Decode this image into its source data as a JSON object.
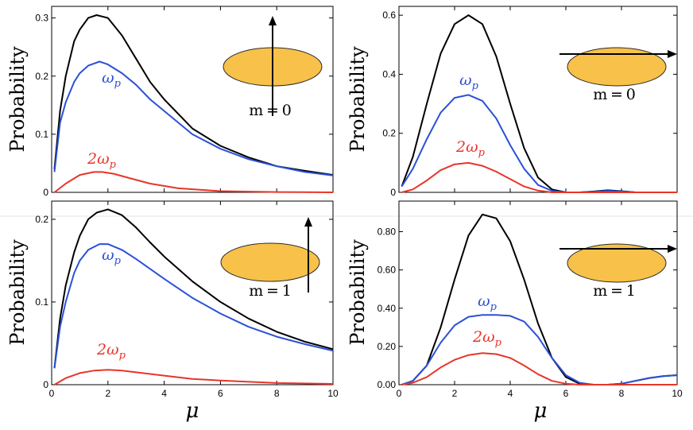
{
  "chart_data": [
    {
      "type": "line",
      "panel": "top-left",
      "xlabel": "",
      "ylabel": "Probability",
      "xlim": [
        0,
        10
      ],
      "ylim": [
        0,
        0.32
      ],
      "xticks": [
        "0",
        "2",
        "4",
        "6",
        "8",
        "10"
      ],
      "yticks": [
        {
          "v": 0,
          "t": "0"
        },
        {
          "v": 0.1,
          "t": "0.1"
        },
        {
          "v": 0.2,
          "t": "0.2"
        },
        {
          "v": 0.3,
          "t": "0.3"
        }
      ],
      "show_xticks": false,
      "inset_label": "m = 0",
      "inset_arrow": "vertical",
      "series": [
        {
          "name": "total",
          "label": "",
          "color": "#000000",
          "x": [
            0.1,
            0.3,
            0.5,
            0.8,
            1.0,
            1.3,
            1.6,
            2.0,
            2.5,
            3.0,
            3.5,
            4.0,
            5.0,
            6.0,
            7.0,
            8.0,
            9.0,
            10.0
          ],
          "y": [
            0.04,
            0.14,
            0.2,
            0.26,
            0.28,
            0.3,
            0.305,
            0.3,
            0.27,
            0.23,
            0.19,
            0.16,
            0.11,
            0.08,
            0.06,
            0.045,
            0.037,
            0.03
          ]
        },
        {
          "name": "omega_p",
          "label": "ω",
          "sub": "p",
          "color": "#2b50d8",
          "x": [
            0.1,
            0.3,
            0.5,
            0.8,
            1.0,
            1.3,
            1.7,
            2.0,
            2.5,
            3.0,
            3.5,
            4.0,
            5.0,
            6.0,
            7.0,
            8.0,
            9.0,
            10.0
          ],
          "y": [
            0.035,
            0.12,
            0.155,
            0.19,
            0.205,
            0.218,
            0.225,
            0.22,
            0.205,
            0.185,
            0.16,
            0.14,
            0.1,
            0.075,
            0.057,
            0.045,
            0.035,
            0.029
          ]
        },
        {
          "name": "two_omega_p",
          "label": "2ω",
          "sub": "p",
          "color": "#e8352a",
          "x": [
            0.1,
            0.5,
            1.0,
            1.5,
            1.8,
            2.2,
            2.8,
            3.5,
            4.5,
            6.0,
            8.0,
            10.0
          ],
          "y": [
            0.0,
            0.015,
            0.03,
            0.035,
            0.035,
            0.032,
            0.024,
            0.015,
            0.007,
            0.002,
            0.0005,
            0.0
          ]
        }
      ]
    },
    {
      "type": "line",
      "panel": "top-right",
      "xlabel": "",
      "ylabel": "Probability",
      "xlim": [
        0,
        10
      ],
      "ylim": [
        0,
        0.63
      ],
      "xticks": [
        "0",
        "2",
        "4",
        "6",
        "8",
        "10"
      ],
      "yticks": [
        {
          "v": 0,
          "t": "0"
        },
        {
          "v": 0.2,
          "t": "0.2"
        },
        {
          "v": 0.4,
          "t": "0.4"
        },
        {
          "v": 0.6,
          "t": "0.6"
        }
      ],
      "show_xticks": false,
      "inset_label": "m = 0",
      "inset_arrow": "horizontal",
      "series": [
        {
          "name": "total",
          "label": "",
          "color": "#000000",
          "x": [
            0.1,
            0.5,
            1.0,
            1.5,
            2.0,
            2.5,
            3.0,
            3.5,
            4.0,
            4.5,
            5.0,
            5.5,
            6.0,
            6.5,
            7.0,
            7.5,
            8.0,
            8.5,
            10.0
          ],
          "y": [
            0.02,
            0.12,
            0.3,
            0.47,
            0.57,
            0.6,
            0.57,
            0.46,
            0.3,
            0.15,
            0.05,
            0.01,
            0.0,
            0.0,
            0.003,
            0.007,
            0.004,
            0.0,
            0.0
          ]
        },
        {
          "name": "omega_p",
          "label": "ω",
          "sub": "p",
          "color": "#2b50d8",
          "x": [
            0.1,
            0.5,
            1.0,
            1.5,
            2.0,
            2.5,
            3.0,
            3.5,
            4.0,
            4.5,
            5.0,
            5.5,
            6.0,
            6.5,
            7.0,
            7.5,
            8.0,
            8.5,
            10.0
          ],
          "y": [
            0.02,
            0.08,
            0.18,
            0.27,
            0.32,
            0.33,
            0.31,
            0.25,
            0.16,
            0.08,
            0.025,
            0.005,
            0.0,
            0.0,
            0.002,
            0.005,
            0.003,
            0.0,
            0.0
          ]
        },
        {
          "name": "two_omega_p",
          "label": "2ω",
          "sub": "p",
          "color": "#e8352a",
          "x": [
            0.1,
            0.5,
            1.0,
            1.5,
            2.0,
            2.5,
            3.0,
            3.5,
            4.0,
            4.5,
            5.0,
            5.5,
            6.0,
            10.0
          ],
          "y": [
            0.0,
            0.01,
            0.04,
            0.075,
            0.095,
            0.1,
            0.09,
            0.07,
            0.045,
            0.02,
            0.006,
            0.0,
            0.0,
            0.0
          ]
        }
      ]
    },
    {
      "type": "line",
      "panel": "bottom-left",
      "xlabel": "μ",
      "ylabel": "Probability",
      "xlim": [
        0,
        10
      ],
      "ylim": [
        0,
        0.222
      ],
      "xticks": [
        "0",
        "2",
        "4",
        "6",
        "8",
        "10"
      ],
      "yticks": [
        {
          "v": 0,
          "t": "0"
        },
        {
          "v": 0.1,
          "t": "0.1"
        },
        {
          "v": 0.2,
          "t": "0.2"
        }
      ],
      "show_xticks": true,
      "inset_label": "m = 1",
      "inset_arrow": "vertical",
      "series": [
        {
          "name": "total",
          "label": "",
          "color": "#000000",
          "x": [
            0.1,
            0.3,
            0.5,
            0.8,
            1.0,
            1.3,
            1.6,
            2.0,
            2.5,
            3.0,
            3.5,
            4.0,
            5.0,
            6.0,
            7.0,
            8.0,
            9.0,
            10.0
          ],
          "y": [
            0.02,
            0.08,
            0.12,
            0.16,
            0.18,
            0.2,
            0.208,
            0.212,
            0.205,
            0.19,
            0.172,
            0.155,
            0.125,
            0.1,
            0.08,
            0.064,
            0.052,
            0.043
          ]
        },
        {
          "name": "omega_p",
          "label": "ω",
          "sub": "p",
          "color": "#2b50d8",
          "x": [
            0.1,
            0.3,
            0.5,
            0.8,
            1.0,
            1.3,
            1.7,
            2.0,
            2.5,
            3.0,
            3.5,
            4.0,
            5.0,
            6.0,
            7.0,
            8.0,
            9.0,
            10.0
          ],
          "y": [
            0.02,
            0.07,
            0.1,
            0.135,
            0.15,
            0.163,
            0.17,
            0.17,
            0.163,
            0.152,
            0.14,
            0.128,
            0.105,
            0.086,
            0.07,
            0.058,
            0.049,
            0.041
          ]
        },
        {
          "name": "two_omega_p",
          "label": "2ω",
          "sub": "p",
          "color": "#e8352a",
          "x": [
            0.1,
            0.5,
            1.0,
            1.5,
            2.0,
            2.5,
            3.0,
            4.0,
            5.0,
            6.0,
            8.0,
            10.0
          ],
          "y": [
            0.0,
            0.008,
            0.014,
            0.017,
            0.018,
            0.017,
            0.015,
            0.011,
            0.007,
            0.005,
            0.002,
            0.001
          ]
        }
      ]
    },
    {
      "type": "line",
      "panel": "bottom-right",
      "xlabel": "μ",
      "ylabel": "Probability",
      "xlim": [
        0,
        10
      ],
      "ylim": [
        0,
        0.96
      ],
      "xticks": [
        "0",
        "2",
        "4",
        "6",
        "8",
        "10"
      ],
      "yticks": [
        {
          "v": 0,
          "t": "0.00"
        },
        {
          "v": 0.2,
          "t": "0.20"
        },
        {
          "v": 0.4,
          "t": "0.40"
        },
        {
          "v": 0.6,
          "t": "0.60"
        },
        {
          "v": 0.8,
          "t": "0.80"
        }
      ],
      "show_xticks": true,
      "inset_label": "m = 1",
      "inset_arrow": "horizontal",
      "series": [
        {
          "name": "total",
          "label": "",
          "color": "#000000",
          "x": [
            0.1,
            0.5,
            1.0,
            1.5,
            2.0,
            2.5,
            3.0,
            3.5,
            4.0,
            4.5,
            5.0,
            5.5,
            6.0,
            6.5,
            7.0,
            7.5,
            8.0,
            8.5,
            9.0,
            9.5,
            10.0
          ],
          "y": [
            0.0,
            0.02,
            0.1,
            0.3,
            0.55,
            0.78,
            0.89,
            0.87,
            0.75,
            0.55,
            0.32,
            0.14,
            0.04,
            0.005,
            0.0,
            0.0,
            0.005,
            0.02,
            0.035,
            0.045,
            0.05
          ]
        },
        {
          "name": "omega_p",
          "label": "ω",
          "sub": "p",
          "color": "#2b50d8",
          "x": [
            0.1,
            0.5,
            1.0,
            1.5,
            2.0,
            2.5,
            3.0,
            3.5,
            4.0,
            4.5,
            5.0,
            5.5,
            6.0,
            6.5,
            7.0,
            7.5,
            8.0,
            8.5,
            9.0,
            9.5,
            10.0
          ],
          "y": [
            0.0,
            0.02,
            0.1,
            0.22,
            0.31,
            0.355,
            0.365,
            0.365,
            0.36,
            0.33,
            0.25,
            0.14,
            0.05,
            0.01,
            0.0,
            0.0,
            0.005,
            0.02,
            0.035,
            0.045,
            0.05
          ]
        },
        {
          "name": "two_omega_p",
          "label": "2ω",
          "sub": "p",
          "color": "#e8352a",
          "x": [
            0.1,
            0.5,
            1.0,
            1.5,
            2.0,
            2.5,
            3.0,
            3.5,
            4.0,
            4.5,
            5.0,
            5.5,
            6.0,
            6.5,
            10.0
          ],
          "y": [
            0.0,
            0.01,
            0.04,
            0.09,
            0.13,
            0.155,
            0.165,
            0.16,
            0.14,
            0.1,
            0.055,
            0.02,
            0.005,
            0.0,
            0.0
          ]
        }
      ]
    }
  ]
}
